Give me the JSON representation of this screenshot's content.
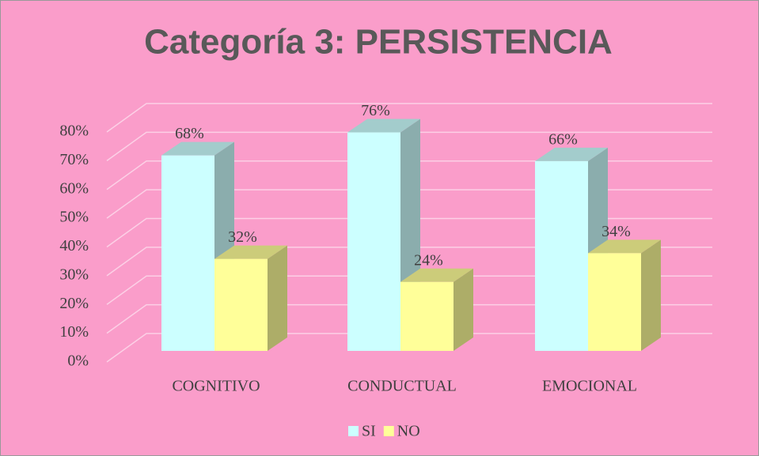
{
  "chart_data": {
    "type": "bar3d",
    "title": "Categoría 3: PERSISTENCIA",
    "categories": [
      "COGNITIVO",
      "CONDUCTUAL",
      "EMOCIONAL"
    ],
    "series": [
      {
        "name": "SI",
        "color": "#ccffff",
        "values": [
          68,
          76,
          66
        ],
        "value_labels": [
          "68%",
          "76%",
          "66%"
        ]
      },
      {
        "name": "NO",
        "color": "#ffff99",
        "values": [
          32,
          24,
          34
        ],
        "value_labels": [
          "32%",
          "24%",
          "34%"
        ]
      }
    ],
    "ylim": [
      0,
      80
    ],
    "yticks": [
      {
        "value": 0,
        "label": "0%"
      },
      {
        "value": 10,
        "label": "10%"
      },
      {
        "value": 20,
        "label": "20%"
      },
      {
        "value": 30,
        "label": "30%"
      },
      {
        "value": 40,
        "label": "40%"
      },
      {
        "value": 50,
        "label": "50%"
      },
      {
        "value": 60,
        "label": "60%"
      },
      {
        "value": 70,
        "label": "70%"
      },
      {
        "value": 80,
        "label": "80%"
      }
    ],
    "grid": true,
    "legend": "bottom"
  }
}
